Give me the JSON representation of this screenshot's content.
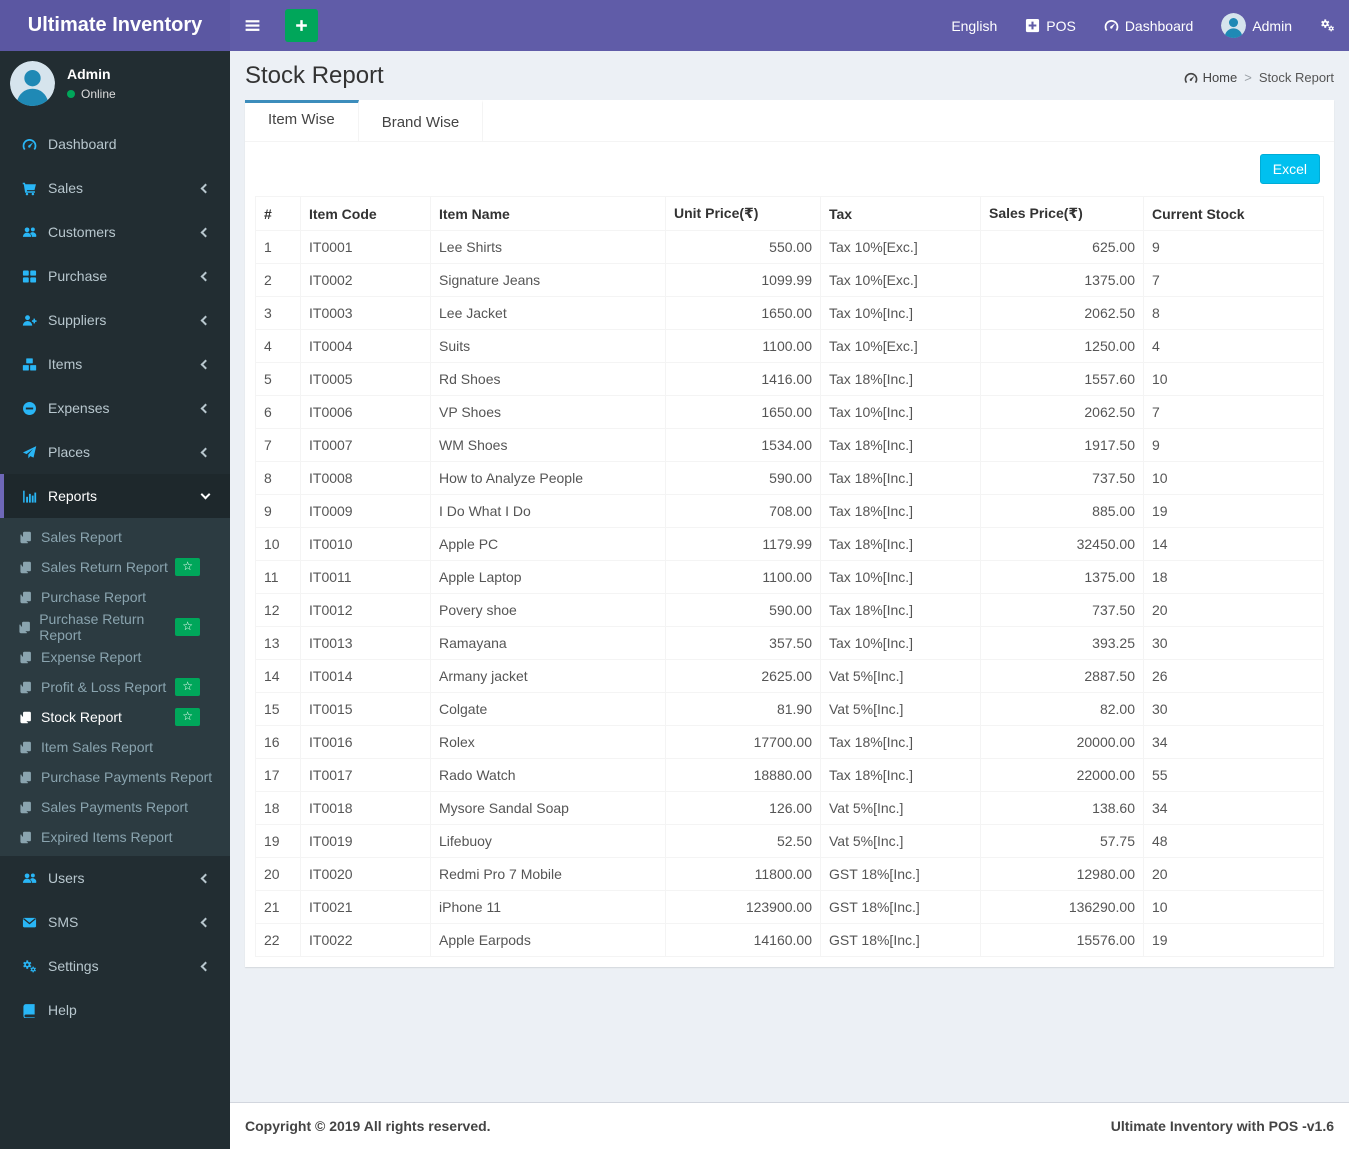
{
  "navbar": {
    "brand": "Ultimate Inventory",
    "english": "English",
    "pos": "POS",
    "dashboard": "Dashboard",
    "admin": "Admin"
  },
  "sidebar": {
    "user": {
      "name": "Admin",
      "status": "Online"
    },
    "items": [
      {
        "label": "Dashboard",
        "icon": "gauge-icon",
        "chevron": false
      },
      {
        "label": "Sales",
        "icon": "cart-icon",
        "chevron": true
      },
      {
        "label": "Customers",
        "icon": "users-icon",
        "chevron": true
      },
      {
        "label": "Purchase",
        "icon": "grid-icon",
        "chevron": true
      },
      {
        "label": "Suppliers",
        "icon": "user-plus-icon",
        "chevron": true
      },
      {
        "label": "Items",
        "icon": "cubes-icon",
        "chevron": true
      },
      {
        "label": "Expenses",
        "icon": "minus-circle-icon",
        "chevron": true
      },
      {
        "label": "Places",
        "icon": "paper-plane-icon",
        "chevron": true
      },
      {
        "label": "Reports",
        "icon": "chart-icon",
        "chevron": "down",
        "active": true,
        "submenu": [
          {
            "label": "Sales Report",
            "starred": false
          },
          {
            "label": "Sales Return Report",
            "starred": true
          },
          {
            "label": "Purchase Report",
            "starred": false
          },
          {
            "label": "Purchase Return Report",
            "starred": true
          },
          {
            "label": "Expense Report",
            "starred": false
          },
          {
            "label": "Profit & Loss Report",
            "starred": true
          },
          {
            "label": "Stock Report",
            "starred": true,
            "active": true
          },
          {
            "label": "Item Sales Report",
            "starred": false
          },
          {
            "label": "Purchase Payments Report",
            "starred": false
          },
          {
            "label": "Sales Payments Report",
            "starred": false
          },
          {
            "label": "Expired Items Report",
            "starred": false
          }
        ]
      },
      {
        "label": "Users",
        "icon": "users-icon",
        "chevron": true
      },
      {
        "label": "SMS",
        "icon": "envelope-icon",
        "chevron": true
      },
      {
        "label": "Settings",
        "icon": "cogs-icon",
        "chevron": true
      },
      {
        "label": "Help",
        "icon": "book-icon",
        "chevron": false
      }
    ],
    "submenu_icon": "copy-icon",
    "badge_icon": "star-icon",
    "badge_glyph": "☆"
  },
  "page": {
    "title": "Stock Report",
    "breadcrumb": {
      "home": "Home",
      "separator": ">",
      "current": "Stock Report"
    },
    "tabs": [
      "Item Wise",
      "Brand Wise"
    ],
    "excel_label": "Excel"
  },
  "table": {
    "headers": [
      "#",
      "Item Code",
      "Item Name",
      "Unit Price(₹)",
      "Tax",
      "Sales Price(₹)",
      "Current Stock"
    ],
    "rows": [
      [
        "1",
        "IT0001",
        "Lee Shirts",
        "550.00",
        "Tax 10%[Exc.]",
        "625.00",
        "9"
      ],
      [
        "2",
        "IT0002",
        "Signature Jeans",
        "1099.99",
        "Tax 10%[Exc.]",
        "1375.00",
        "7"
      ],
      [
        "3",
        "IT0003",
        "Lee Jacket",
        "1650.00",
        "Tax 10%[Inc.]",
        "2062.50",
        "8"
      ],
      [
        "4",
        "IT0004",
        "Suits",
        "1100.00",
        "Tax 10%[Exc.]",
        "1250.00",
        "4"
      ],
      [
        "5",
        "IT0005",
        "Rd Shoes",
        "1416.00",
        "Tax 18%[Inc.]",
        "1557.60",
        "10"
      ],
      [
        "6",
        "IT0006",
        "VP Shoes",
        "1650.00",
        "Tax 10%[Inc.]",
        "2062.50",
        "7"
      ],
      [
        "7",
        "IT0007",
        "WM Shoes",
        "1534.00",
        "Tax 18%[Inc.]",
        "1917.50",
        "9"
      ],
      [
        "8",
        "IT0008",
        "How to Analyze People",
        "590.00",
        "Tax 18%[Inc.]",
        "737.50",
        "10"
      ],
      [
        "9",
        "IT0009",
        "I Do What I Do",
        "708.00",
        "Tax 18%[Inc.]",
        "885.00",
        "19"
      ],
      [
        "10",
        "IT0010",
        "Apple PC",
        "1179.99",
        "Tax 18%[Inc.]",
        "32450.00",
        "14"
      ],
      [
        "11",
        "IT0011",
        "Apple Laptop",
        "1100.00",
        "Tax 10%[Inc.]",
        "1375.00",
        "18"
      ],
      [
        "12",
        "IT0012",
        "Povery shoe",
        "590.00",
        "Tax 18%[Inc.]",
        "737.50",
        "20"
      ],
      [
        "13",
        "IT0013",
        "Ramayana",
        "357.50",
        "Tax 10%[Inc.]",
        "393.25",
        "30"
      ],
      [
        "14",
        "IT0014",
        "Armany jacket",
        "2625.00",
        "Vat 5%[Inc.]",
        "2887.50",
        "26"
      ],
      [
        "15",
        "IT0015",
        "Colgate",
        "81.90",
        "Vat 5%[Inc.]",
        "82.00",
        "30"
      ],
      [
        "16",
        "IT0016",
        "Rolex",
        "17700.00",
        "Tax 18%[Inc.]",
        "20000.00",
        "34"
      ],
      [
        "17",
        "IT0017",
        "Rado Watch",
        "18880.00",
        "Tax 18%[Inc.]",
        "22000.00",
        "55"
      ],
      [
        "18",
        "IT0018",
        "Mysore Sandal Soap",
        "126.00",
        "Vat 5%[Inc.]",
        "138.60",
        "34"
      ],
      [
        "19",
        "IT0019",
        "Lifebuoy",
        "52.50",
        "Vat 5%[Inc.]",
        "57.75",
        "48"
      ],
      [
        "20",
        "IT0020",
        "Redmi Pro 7 Mobile",
        "11800.00",
        "GST 18%[Inc.]",
        "12980.00",
        "20"
      ],
      [
        "21",
        "IT0021",
        "iPhone 11",
        "123900.00",
        "GST 18%[Inc.]",
        "136290.00",
        "10"
      ],
      [
        "22",
        "IT0022",
        "Apple Earpods",
        "14160.00",
        "GST 18%[Inc.]",
        "15576.00",
        "19"
      ]
    ]
  },
  "footer": {
    "left": "Copyright © 2019 All rights reserved.",
    "right": "Ultimate Inventory with POS -v1.6"
  },
  "icons": {
    "menu_toggle": "bars-icon",
    "add_button": "plus-icon",
    "pos": "plus-square-icon",
    "dashboard": "gauge-icon",
    "user_avatar": "avatar-icon",
    "settings": "cogs-icon",
    "breadcrumb_home": "gauge-icon"
  },
  "colors": {
    "navbar_purple": "#605ca8",
    "sidebar_dark": "#222d32",
    "submenu_dark": "#2c3b41",
    "icon_blue": "#29b6f6",
    "green": "#00a65a",
    "excel_cyan": "#00c0ef",
    "active_tab_border": "#3c8dbc",
    "content_bg": "#ecf0f5"
  }
}
